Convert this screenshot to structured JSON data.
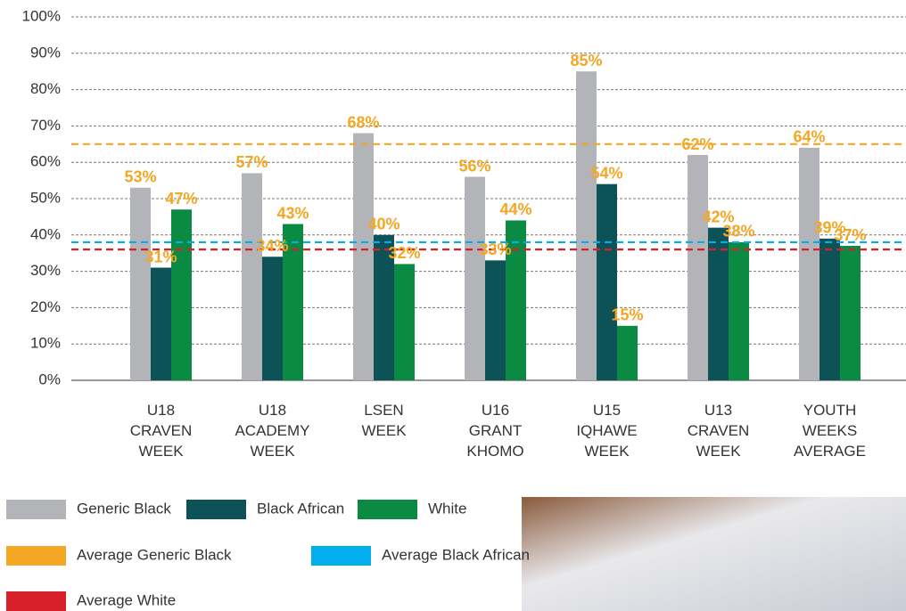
{
  "chart_data": {
    "type": "bar",
    "categories": [
      [
        "U18",
        "CRAVEN",
        "WEEK"
      ],
      [
        "U18",
        "ACADEMY",
        "WEEK"
      ],
      [
        "LSEN",
        "WEEK"
      ],
      [
        "U16",
        "GRANT",
        "KHOMO"
      ],
      [
        "U15",
        "IQHAWE",
        "WEEK"
      ],
      [
        "U13",
        "CRAVEN",
        "WEEK"
      ],
      [
        "YOUTH",
        "WEEKS",
        "AVERAGE"
      ]
    ],
    "series": [
      {
        "name": "Generic Black",
        "color": "#b3b4b8",
        "values": [
          53,
          57,
          68,
          56,
          85,
          62,
          64
        ],
        "value_labels": [
          "53%",
          "57%",
          "68%",
          "56%",
          "85%",
          "62%",
          "64%"
        ]
      },
      {
        "name": "Black African",
        "color": "#0d5257",
        "values": [
          31,
          34,
          40,
          33,
          54,
          42,
          39
        ],
        "value_labels": [
          "31%",
          "34%",
          "40%",
          "33%",
          "54%",
          "42%",
          "39%"
        ]
      },
      {
        "name": "White",
        "color": "#0a8a43",
        "values": [
          47,
          43,
          32,
          44,
          15,
          38,
          37
        ],
        "value_labels": [
          "47%",
          "43%",
          "32%",
          "44%",
          "15%",
          "38%",
          "37%"
        ]
      }
    ],
    "reference_lines": [
      {
        "name": "Average Generic Black",
        "color": "#f5a623",
        "value": 65
      },
      {
        "name": "Average Black African",
        "color": "#00aeef",
        "value": 38
      },
      {
        "name": "Average White",
        "color": "#d7202a",
        "value": 36
      }
    ],
    "value_label_color": "#f5a623",
    "ylim": [
      0,
      100
    ],
    "yticks": [
      {
        "value": 0,
        "label": "0%"
      },
      {
        "value": 10,
        "label": "10%"
      },
      {
        "value": 20,
        "label": "20%"
      },
      {
        "value": 30,
        "label": "30%"
      },
      {
        "value": 40,
        "label": "40%"
      },
      {
        "value": 50,
        "label": "50%"
      },
      {
        "value": 60,
        "label": "60%"
      },
      {
        "value": 70,
        "label": "70%"
      },
      {
        "value": 80,
        "label": "80%"
      },
      {
        "value": 90,
        "label": "90%"
      },
      {
        "value": 100,
        "label": "100%"
      }
    ],
    "grid": true
  }
}
